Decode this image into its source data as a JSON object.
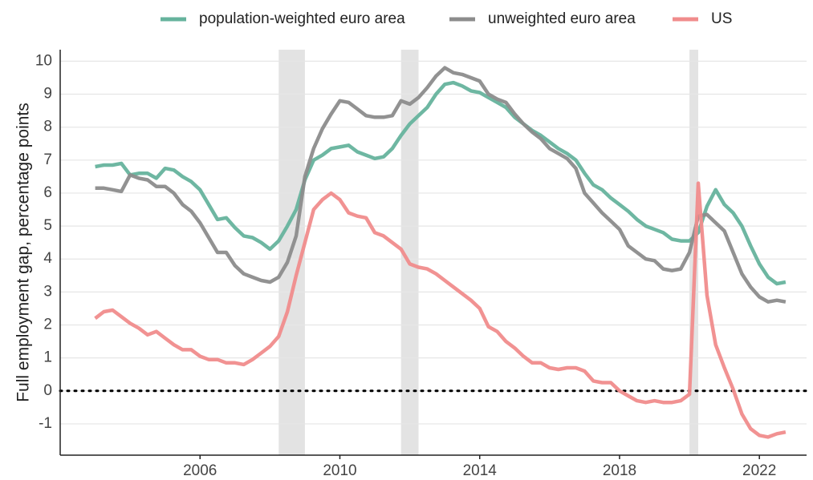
{
  "chart_data": {
    "type": "line",
    "y_label": "Full employment gap, percentage points",
    "x": [
      2003,
      2003.25,
      2003.5,
      2003.75,
      2004,
      2004.25,
      2004.5,
      2004.75,
      2005,
      2005.25,
      2005.5,
      2005.75,
      2006,
      2006.25,
      2006.5,
      2006.75,
      2007,
      2007.25,
      2007.5,
      2007.75,
      2008,
      2008.25,
      2008.5,
      2008.75,
      2009,
      2009.25,
      2009.5,
      2009.75,
      2010,
      2010.25,
      2010.5,
      2010.75,
      2011,
      2011.25,
      2011.5,
      2011.75,
      2012,
      2012.25,
      2012.5,
      2012.75,
      2013,
      2013.25,
      2013.5,
      2013.75,
      2014,
      2014.25,
      2014.5,
      2014.75,
      2015,
      2015.25,
      2015.5,
      2015.75,
      2016,
      2016.25,
      2016.5,
      2016.75,
      2017,
      2017.25,
      2017.5,
      2017.75,
      2018,
      2018.25,
      2018.5,
      2018.75,
      2019,
      2019.25,
      2019.5,
      2019.75,
      2020,
      2020.25,
      2020.5,
      2020.75,
      2021,
      2021.25,
      2021.5,
      2021.75,
      2022,
      2022.25,
      2022.5,
      2022.75
    ],
    "series": [
      {
        "name": "population-weighted euro area",
        "color": "#66b39d",
        "values": [
          6.8,
          6.85,
          6.85,
          6.9,
          6.55,
          6.6,
          6.6,
          6.45,
          6.75,
          6.7,
          6.5,
          6.35,
          6.1,
          5.65,
          5.2,
          5.25,
          4.95,
          4.7,
          4.65,
          4.5,
          4.3,
          4.55,
          5.0,
          5.5,
          6.4,
          7.0,
          7.15,
          7.35,
          7.4,
          7.45,
          7.25,
          7.15,
          7.05,
          7.1,
          7.35,
          7.75,
          8.1,
          8.35,
          8.6,
          9.0,
          9.3,
          9.35,
          9.25,
          9.1,
          9.05,
          8.9,
          8.75,
          8.6,
          8.3,
          8.1,
          7.9,
          7.75,
          7.55,
          7.35,
          7.2,
          7.0,
          6.6,
          6.25,
          6.1,
          5.85,
          5.65,
          5.45,
          5.2,
          5.0,
          4.9,
          4.8,
          4.6,
          4.55,
          4.55,
          4.8,
          5.6,
          6.1,
          5.65,
          5.4,
          5.0,
          4.4,
          3.85,
          3.45,
          3.25,
          3.3
        ]
      },
      {
        "name": "unweighted euro area",
        "color": "#8c8c8c",
        "values": [
          6.15,
          6.15,
          6.1,
          6.05,
          6.55,
          6.45,
          6.4,
          6.2,
          6.2,
          6.0,
          5.65,
          5.45,
          5.1,
          4.65,
          4.2,
          4.2,
          3.8,
          3.55,
          3.45,
          3.35,
          3.3,
          3.45,
          3.9,
          4.7,
          6.5,
          7.35,
          7.95,
          8.4,
          8.8,
          8.75,
          8.55,
          8.35,
          8.3,
          8.3,
          8.35,
          8.8,
          8.7,
          8.9,
          9.2,
          9.55,
          9.8,
          9.65,
          9.6,
          9.5,
          9.4,
          9.0,
          8.85,
          8.75,
          8.4,
          8.1,
          7.85,
          7.65,
          7.35,
          7.2,
          7.05,
          6.75,
          6.0,
          5.7,
          5.4,
          5.15,
          4.9,
          4.4,
          4.2,
          4.0,
          3.95,
          3.7,
          3.65,
          3.7,
          4.2,
          5.3,
          5.35,
          5.1,
          4.85,
          4.2,
          3.55,
          3.15,
          2.85,
          2.7,
          2.75,
          2.7
        ]
      },
      {
        "name": "US",
        "color": "#f08c8c",
        "values": [
          2.2,
          2.4,
          2.45,
          2.25,
          2.05,
          1.9,
          1.7,
          1.8,
          1.6,
          1.4,
          1.25,
          1.25,
          1.05,
          0.95,
          0.95,
          0.85,
          0.85,
          0.8,
          0.95,
          1.15,
          1.35,
          1.65,
          2.4,
          3.5,
          4.5,
          5.5,
          5.8,
          6.0,
          5.8,
          5.4,
          5.3,
          5.25,
          4.8,
          4.7,
          4.5,
          4.3,
          3.85,
          3.75,
          3.7,
          3.55,
          3.35,
          3.15,
          2.95,
          2.75,
          2.5,
          1.95,
          1.8,
          1.5,
          1.3,
          1.05,
          0.85,
          0.85,
          0.7,
          0.65,
          0.7,
          0.7,
          0.6,
          0.3,
          0.25,
          0.25,
          0.0,
          -0.15,
          -0.3,
          -0.35,
          -0.3,
          -0.35,
          -0.35,
          -0.3,
          -0.1,
          6.3,
          2.9,
          1.4,
          0.7,
          0.05,
          -0.7,
          -1.15,
          -1.35,
          -1.4,
          -1.3,
          -1.25
        ]
      }
    ],
    "shaded_periods": [
      [
        2008.25,
        2009.0
      ],
      [
        2011.75,
        2012.25
      ],
      [
        2020.0,
        2020.25
      ]
    ],
    "shade_color": "#e3e3e3",
    "reference_line": 0,
    "xlim": [
      2002,
      2023.35
    ],
    "xticks": [
      2006,
      2010,
      2014,
      2018,
      2022
    ],
    "ylim": [
      -1.95,
      10.35
    ],
    "yticks": [
      -1,
      0,
      1,
      2,
      3,
      4,
      5,
      6,
      7,
      8,
      9,
      10
    ],
    "grid": true,
    "legend": "top"
  }
}
